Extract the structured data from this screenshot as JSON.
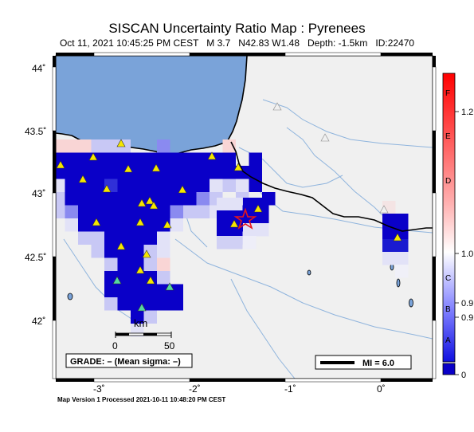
{
  "title": "SISCAN Uncertainty Ratio Map : Pyrenees",
  "subtitle": "Oct 11, 2021 10:45:25 PM CEST   M 3.7   N42.83 W1.48   Depth: -1.5km   ID:22470",
  "y_axis_labels": [
    "44˚",
    "43.5˚",
    "43˚",
    "42.5˚",
    "42˚"
  ],
  "x_axis_labels": [
    "-3˚",
    "-2˚",
    "-1˚",
    "0˚"
  ],
  "scale_bar": {
    "unit": "km",
    "ticks": [
      "0",
      "50"
    ]
  },
  "grade_box": "GRADE: – (Mean sigma: –)",
  "mi_legend": "MI = 6.0",
  "colorbar": {
    "letters": [
      "F",
      "E",
      "D",
      "C",
      "B",
      "A"
    ],
    "ticks": [
      "1.2",
      "1.0",
      "0.9",
      "0.9",
      "0"
    ]
  },
  "footer": "Map Version 1 Processed 2021-10-11 10:48:20 PM CEST",
  "colors": {
    "sea": "#7aa3d9",
    "land": "#f0f0f0",
    "river": "#8fb4dd",
    "border": "#000000",
    "station": "#f5e600",
    "epicenter": "#e8151b",
    "dark_blue": "#0a00c8"
  },
  "epicenter": {
    "lat": 42.83,
    "lon": -1.48
  }
}
